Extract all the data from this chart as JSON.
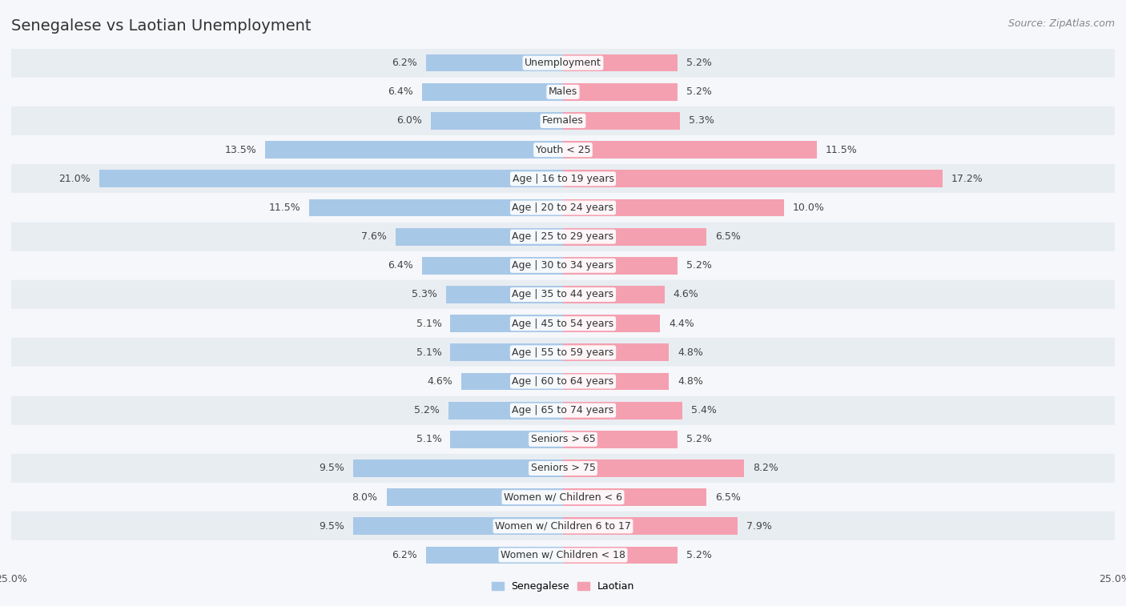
{
  "title": "Senegalese vs Laotian Unemployment",
  "source": "Source: ZipAtlas.com",
  "categories": [
    "Unemployment",
    "Males",
    "Females",
    "Youth < 25",
    "Age | 16 to 19 years",
    "Age | 20 to 24 years",
    "Age | 25 to 29 years",
    "Age | 30 to 34 years",
    "Age | 35 to 44 years",
    "Age | 45 to 54 years",
    "Age | 55 to 59 years",
    "Age | 60 to 64 years",
    "Age | 65 to 74 years",
    "Seniors > 65",
    "Seniors > 75",
    "Women w/ Children < 6",
    "Women w/ Children 6 to 17",
    "Women w/ Children < 18"
  ],
  "senegalese": [
    6.2,
    6.4,
    6.0,
    13.5,
    21.0,
    11.5,
    7.6,
    6.4,
    5.3,
    5.1,
    5.1,
    4.6,
    5.2,
    5.1,
    9.5,
    8.0,
    9.5,
    6.2
  ],
  "laotian": [
    5.2,
    5.2,
    5.3,
    11.5,
    17.2,
    10.0,
    6.5,
    5.2,
    4.6,
    4.4,
    4.8,
    4.8,
    5.4,
    5.2,
    8.2,
    6.5,
    7.9,
    5.2
  ],
  "senegalese_color": "#a8c8e8",
  "laotian_color": "#f4a0b0",
  "background_row_light": "#e8edf2",
  "background_row_white": "#f5f7fa",
  "bar_height": 0.6,
  "xlim": 25.0,
  "legend_label_left": "Senegalese",
  "legend_label_right": "Laotian",
  "title_fontsize": 14,
  "source_fontsize": 9,
  "label_fontsize": 9,
  "category_fontsize": 9
}
